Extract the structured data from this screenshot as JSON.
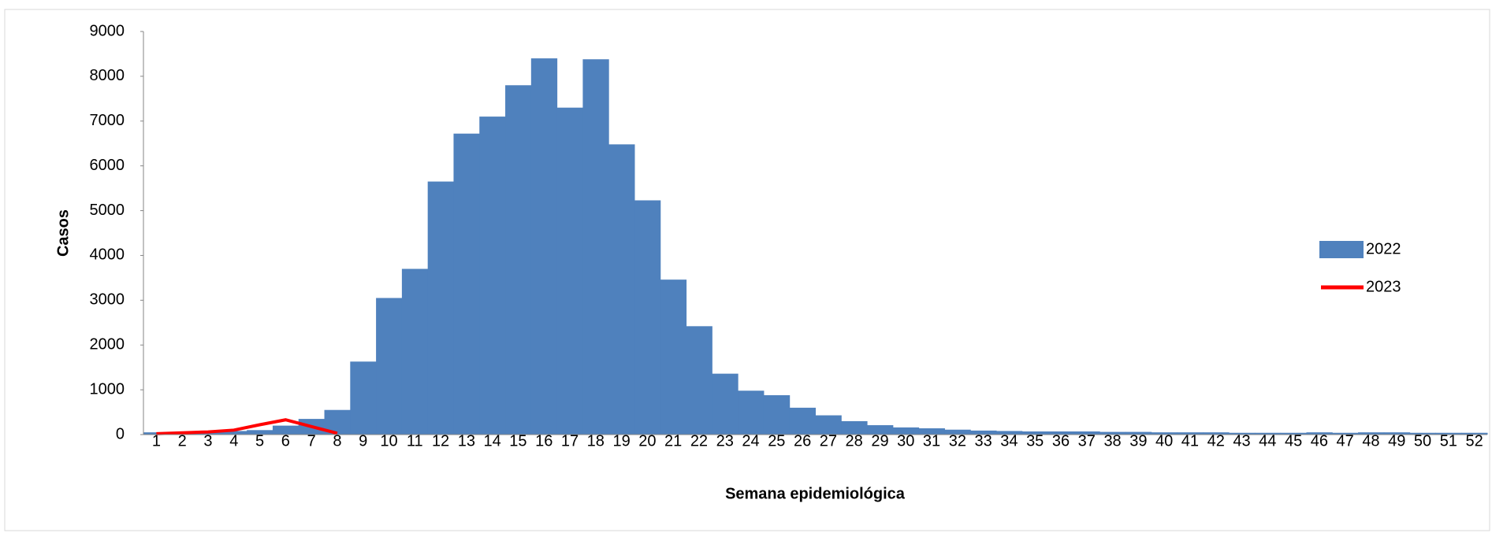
{
  "chart_data": {
    "type": "bar",
    "x_label": "Semana epidemiológica",
    "y_label": "Casos",
    "categories": [
      "1",
      "2",
      "3",
      "4",
      "5",
      "6",
      "7",
      "8",
      "9",
      "10",
      "11",
      "12",
      "13",
      "14",
      "15",
      "16",
      "17",
      "18",
      "19",
      "20",
      "21",
      "22",
      "23",
      "24",
      "25",
      "26",
      "27",
      "28",
      "29",
      "30",
      "31",
      "32",
      "33",
      "34",
      "35",
      "36",
      "37",
      "38",
      "39",
      "40",
      "41",
      "42",
      "43",
      "44",
      "45",
      "46",
      "47",
      "48",
      "49",
      "50",
      "51",
      "52"
    ],
    "series": [
      {
        "name": "2022",
        "type": "bar",
        "color": "#4f81bd",
        "values": [
          50,
          50,
          60,
          80,
          100,
          200,
          350,
          550,
          1630,
          3050,
          3700,
          5650,
          6720,
          7100,
          7800,
          8400,
          7300,
          8380,
          6480,
          5230,
          3460,
          2420,
          1360,
          980,
          880,
          600,
          430,
          300,
          210,
          160,
          140,
          110,
          90,
          80,
          70,
          70,
          70,
          60,
          60,
          50,
          50,
          50,
          40,
          40,
          40,
          50,
          40,
          50,
          50,
          40,
          40,
          40
        ]
      },
      {
        "name": "2023",
        "type": "line",
        "color": "#ff0000",
        "values": [
          20,
          40,
          60,
          100,
          220,
          330,
          180,
          30,
          null,
          null,
          null,
          null,
          null,
          null,
          null,
          null,
          null,
          null,
          null,
          null,
          null,
          null,
          null,
          null,
          null,
          null,
          null,
          null,
          null,
          null,
          null,
          null,
          null,
          null,
          null,
          null,
          null,
          null,
          null,
          null,
          null,
          null,
          null,
          null,
          null,
          null,
          null,
          null,
          null,
          null,
          null,
          null
        ]
      }
    ],
    "ylim": [
      0,
      9000
    ],
    "yticks": [
      0,
      1000,
      2000,
      3000,
      4000,
      5000,
      6000,
      7000,
      8000,
      9000
    ],
    "legend": "right"
  }
}
